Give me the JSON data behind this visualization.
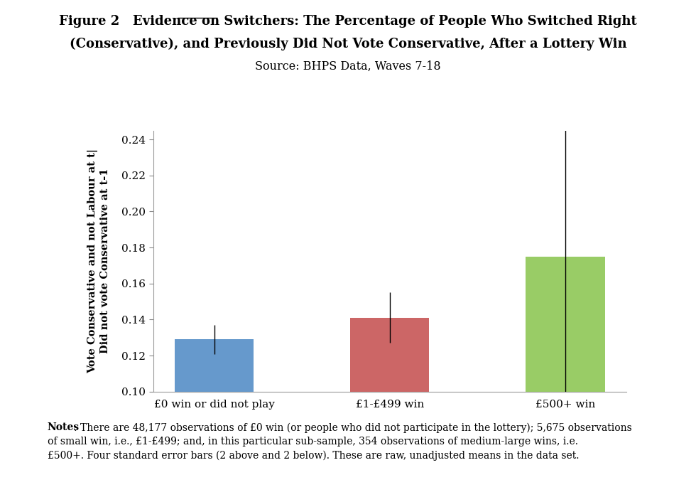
{
  "title_line1": "Figure 2   Evidence on Switchers: The Percentage of People Who Switched Right",
  "title_line2": "(Conservative), and Previously Did Not Vote Conservative, After a Lottery Win",
  "subtitle": "Source: BHPS Data, Waves 7-18",
  "categories": [
    "£0 win or did not play",
    "£1-£499 win",
    "£500+ win"
  ],
  "values": [
    0.129,
    0.141,
    0.175
  ],
  "errors": [
    0.004,
    0.007,
    0.04
  ],
  "bar_colors": [
    "#6699CC",
    "#CC6666",
    "#99CC66"
  ],
  "ylabel_line1": "Vote Conservative and not Labour at t|",
  "ylabel_line2": "Did not vote Conservative at t-1",
  "ylim": [
    0.1,
    0.245
  ],
  "yticks": [
    0.1,
    0.12,
    0.14,
    0.16,
    0.18,
    0.2,
    0.22,
    0.24
  ],
  "notes_bold": "Notes",
  "notes_text": ": There are 48,177 observations of £0 win (or people who did not participate in the lottery); 5,675 observations of small win, i.e., £1-£499; and, in this particular sub-sample, 354 observations of medium-large wins, i.e. £500+. Four standard error bars (2 above and 2 below). These are raw, unadjusted means in the data set.",
  "background_color": "#FFFFFF",
  "bar_width": 0.45,
  "figure_bg": "#FFFFFF"
}
